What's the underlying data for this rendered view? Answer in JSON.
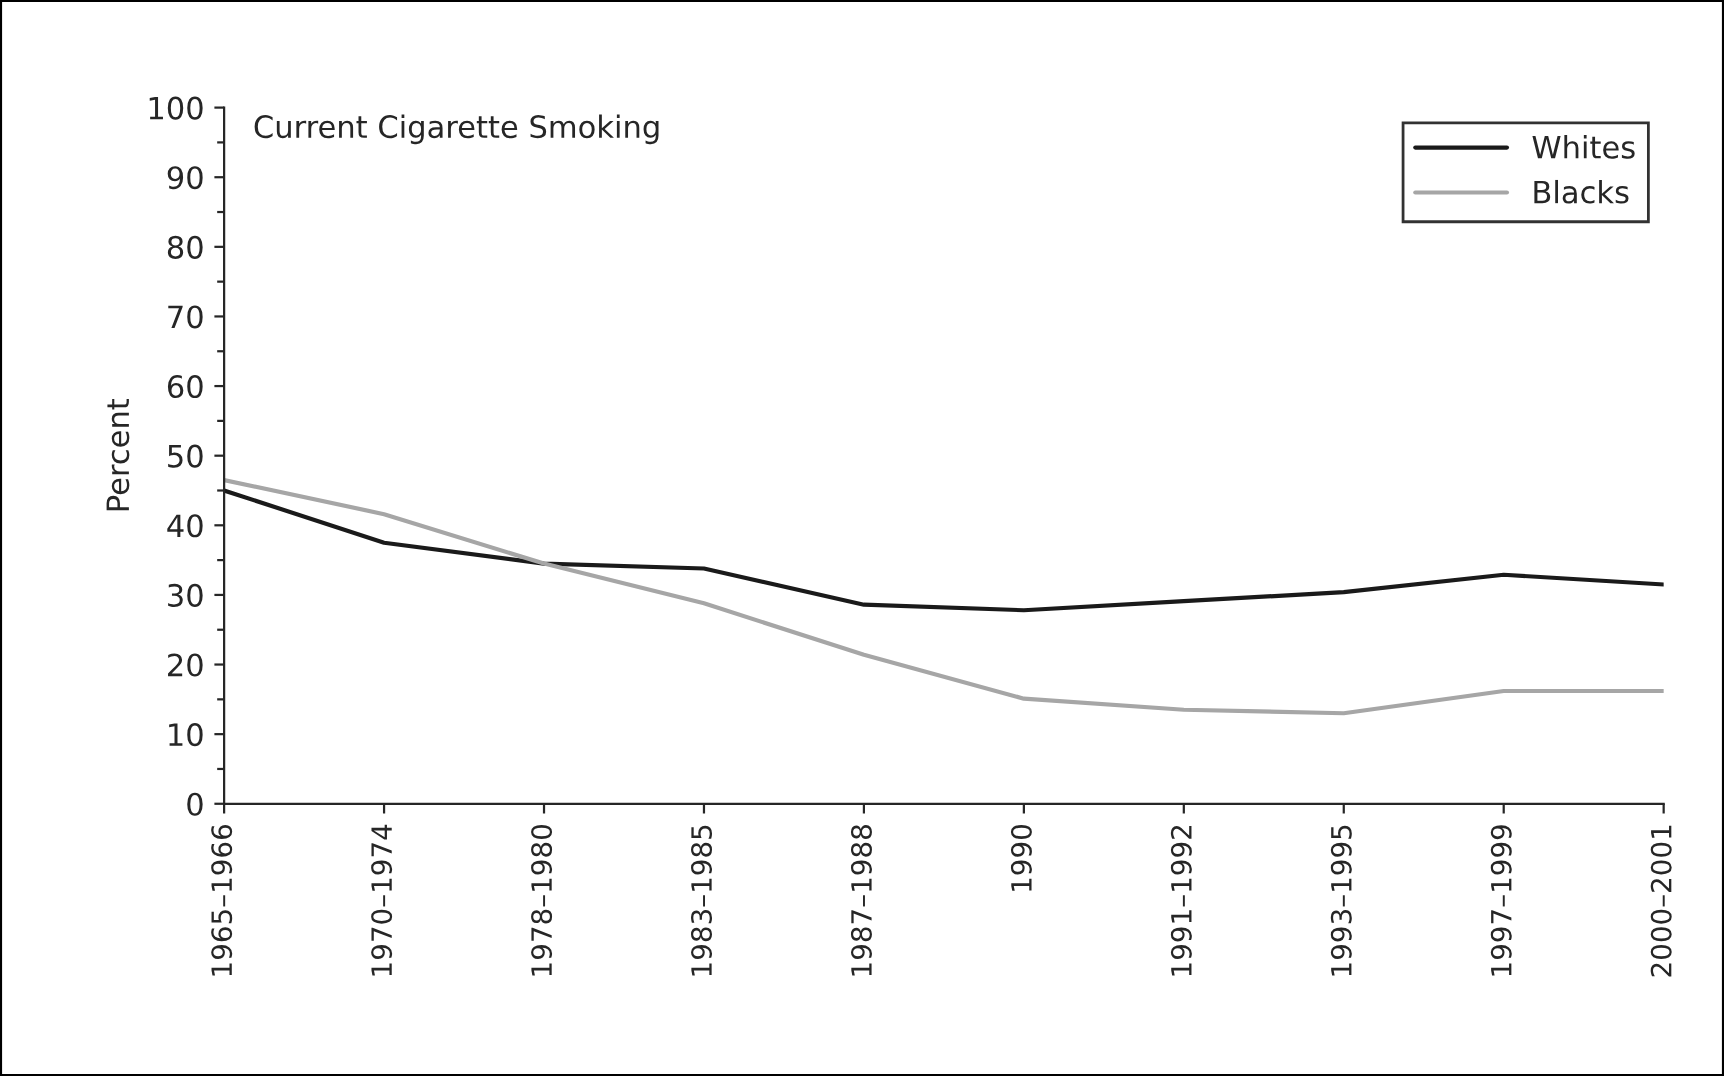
{
  "chart_data": {
    "type": "line",
    "title": "Current Cigarette Smoking",
    "ylabel": "Percent",
    "categories": [
      "1965–1966",
      "1970–1974",
      "1978–1980",
      "1983–1985",
      "1987–1988",
      "1990",
      "1991–1992",
      "1993–1995",
      "1997–1999",
      "2000–2001"
    ],
    "series": [
      {
        "name": "Whites",
        "color": "#1a1a1a",
        "values": [
          45.0,
          37.5,
          34.5,
          33.8,
          28.6,
          27.8,
          29.1,
          30.4,
          32.9,
          31.5
        ]
      },
      {
        "name": "Blacks",
        "color": "#a6a6a6",
        "values": [
          46.5,
          41.6,
          34.5,
          28.8,
          21.4,
          15.1,
          13.5,
          13.0,
          16.2,
          16.2
        ]
      }
    ],
    "ylim": [
      0,
      100
    ],
    "yticks": [
      0,
      {
        "value": 5,
        "label": null
      },
      10,
      {
        "value": 15,
        "label": null
      },
      20,
      {
        "value": 25,
        "label": null
      },
      30,
      {
        "value": 35,
        "label": null
      },
      40,
      {
        "value": 45,
        "label": null
      },
      50,
      {
        "value": 55,
        "label": null
      },
      60,
      {
        "value": 65,
        "label": null
      },
      70,
      {
        "value": 75,
        "label": null
      },
      80,
      {
        "value": 85,
        "label": null
      },
      90,
      {
        "value": 95,
        "label": null
      },
      100
    ],
    "grid": false,
    "legend": "top right",
    "marker": "none",
    "line_style": "solid"
  }
}
